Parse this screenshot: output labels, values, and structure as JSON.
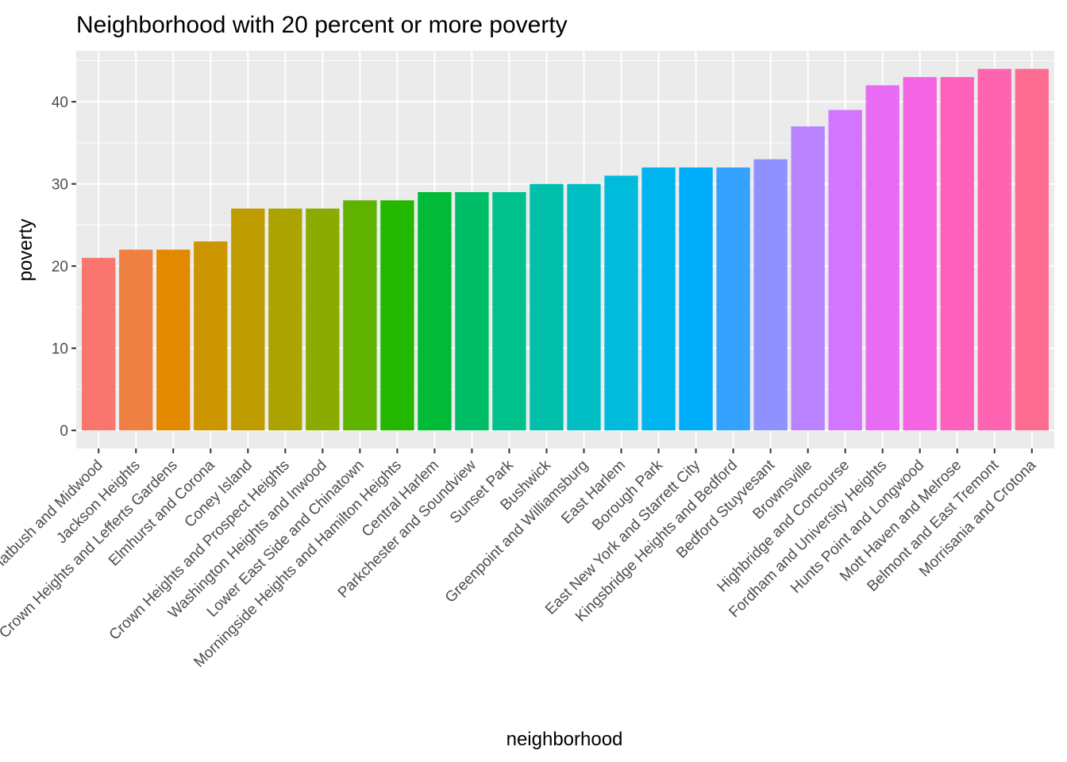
{
  "chart_data": {
    "type": "bar",
    "title": "Neighborhood with 20 percent or more poverty",
    "xlabel": "neighborhood",
    "ylabel": "poverty",
    "ylim": [
      -2.2,
      46.2
    ],
    "yticks": [
      0,
      10,
      20,
      30,
      40
    ],
    "grid": true,
    "legend": "none",
    "categories": [
      "Flatbush and Midwood",
      "Jackson Heights",
      "Crown Heights and Lefferts Gardens",
      "Elmhurst and Corona",
      "Coney Island",
      "Crown Heights and Prospect Heights",
      "Washington Heights and Inwood",
      "Lower East Side and Chinatown",
      "Morningside Heights and Hamilton Heights",
      "Central Harlem",
      "Parkchester and Soundview",
      "Sunset Park",
      "Bushwick",
      "Greenpoint and Williamsburg",
      "East Harlem",
      "Borough Park",
      "East New York and Starrett City",
      "Kingsbridge Heights and Bedford",
      "Bedford Stuyvesant",
      "Brownsville",
      "Highbridge and Concourse",
      "Fordham and University Heights",
      "Hunts Point and Longwood",
      "Mott Haven and Melrose",
      "Belmont and East Tremont",
      "Morrisania and Crotona"
    ],
    "values": [
      21,
      22,
      22,
      23,
      27,
      27,
      27,
      28,
      28,
      29,
      29,
      29,
      30,
      30,
      31,
      32,
      32,
      32,
      33,
      37,
      39,
      42,
      43,
      43,
      44,
      44
    ],
    "colors": [
      "#F8766D",
      "#EE8044",
      "#E38900",
      "#CC9600",
      "#BE9C00",
      "#AAA300",
      "#8CAB00",
      "#60B200",
      "#24B700",
      "#00BA38",
      "#00BE67",
      "#00C08B",
      "#00C0AB",
      "#00BFC4",
      "#00BBDB",
      "#00B4F0",
      "#00ADFA",
      "#35A2FF",
      "#8F91FF",
      "#B983FF",
      "#D376FF",
      "#E76BF3",
      "#F564E3",
      "#FF62BC",
      "#FF64B0",
      "#FF6C91"
    ],
    "panel_background": "#EBEBEB",
    "gridline_color": "#FFFFFF"
  }
}
